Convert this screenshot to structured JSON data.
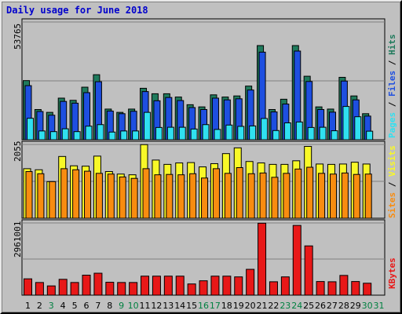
{
  "chart_data": {
    "type": "bar",
    "title": "Daily usage for June 2018",
    "categories": [
      "1",
      "2",
      "3",
      "4",
      "5",
      "6",
      "7",
      "8",
      "9",
      "10",
      "11",
      "12",
      "13",
      "14",
      "15",
      "16",
      "17",
      "18",
      "19",
      "20",
      "21",
      "22",
      "23",
      "24",
      "25",
      "26",
      "27",
      "28",
      "29",
      "30",
      "31"
    ],
    "weekend_days": [
      "3",
      "9",
      "10",
      "16",
      "17",
      "23",
      "24",
      "30",
      "31"
    ],
    "colors": {
      "hits": "#1f7a5c",
      "files": "#1e4fe0",
      "pages": "#30e0f0",
      "visits": "#f8f828",
      "sites": "#f88c10",
      "kbytes": "#e81818",
      "weekday_label": "#000000",
      "weekend_label": "#008040"
    },
    "panels": [
      {
        "name": "hits-files-pages",
        "max_label": "53765",
        "ylim": [
          0,
          53765
        ],
        "series": [
          {
            "name": "Hits",
            "color": "#1f7a5c",
            "values": [
              27000,
              13800,
              12500,
              19000,
              18000,
              24000,
              29700,
              14000,
              12500,
              14000,
              23500,
              21000,
              21000,
              19500,
              16000,
              15000,
              20500,
              19500,
              20000,
              24500,
              43000,
              13800,
              18500,
              43000,
              29000,
              15000,
              14000,
              28500,
              20000,
              11900,
              0
            ]
          },
          {
            "name": "Files",
            "color": "#1e4fe0",
            "values": [
              24700,
              12900,
              11200,
              17500,
              16700,
              21500,
              26500,
              13100,
              11900,
              13000,
              22000,
              17800,
              19300,
              17900,
              14700,
              13800,
              19000,
              18200,
              18700,
              22700,
              40000,
              12700,
              16300,
              40500,
              26600,
              13800,
              12600,
              26800,
              18200,
              10800,
              0
            ]
          },
          {
            "name": "Pages",
            "color": "#30e0f0",
            "values": [
              9800,
              4000,
              3700,
              5000,
              3700,
              6200,
              6900,
              3500,
              4000,
              4000,
              12500,
              5600,
              5700,
              5700,
              4900,
              6900,
              4700,
              6700,
              6100,
              6300,
              9700,
              4200,
              7700,
              8100,
              5600,
              5700,
              4100,
              15200,
              10500,
              3900,
              0
            ]
          }
        ]
      },
      {
        "name": "visits-sites",
        "max_label": "2055",
        "ylim": [
          0,
          2055
        ],
        "series": [
          {
            "name": "Visits",
            "color": "#f8f828",
            "values": [
              1380,
              1350,
              1020,
              1720,
              1460,
              1450,
              1730,
              1300,
              1230,
              1210,
              2050,
              1620,
              1500,
              1540,
              1550,
              1430,
              1520,
              1800,
              1960,
              1580,
              1540,
              1500,
              1500,
              1600,
              2000,
              1510,
              1500,
              1510,
              1560,
              1510,
              0
            ]
          },
          {
            "name": "Sites",
            "color": "#f88c10",
            "values": [
              1300,
              1240,
              1020,
              1380,
              1350,
              1310,
              1250,
              1230,
              1150,
              1110,
              1380,
              1210,
              1220,
              1210,
              1240,
              1120,
              1380,
              1250,
              1410,
              1240,
              1260,
              1140,
              1250,
              1370,
              1420,
              1250,
              1230,
              1260,
              1220,
              1230,
              0
            ]
          }
        ]
      },
      {
        "name": "kbytes",
        "max_label": "2961001",
        "ylim": [
          0,
          2961001
        ],
        "series": [
          {
            "name": "KBytes",
            "color": "#e81818",
            "values": [
              670000,
              520000,
              380000,
              650000,
              520000,
              820000,
              900000,
              530000,
              520000,
              520000,
              780000,
              780000,
              780000,
              780000,
              460000,
              590000,
              780000,
              780000,
              750000,
              1060000,
              2950000,
              550000,
              750000,
              2860000,
              2020000,
              560000,
              550000,
              810000,
              560000,
              490000,
              0
            ]
          }
        ]
      }
    ],
    "right_labels": {
      "panel1": [
        {
          "text": "Pages",
          "color": "#30e0f0"
        },
        {
          "text": " / ",
          "color": "#000000"
        },
        {
          "text": "Files",
          "color": "#1e4fe0"
        },
        {
          "text": " / ",
          "color": "#000000"
        },
        {
          "text": "Hits",
          "color": "#1f7a5c"
        }
      ],
      "panel2": [
        {
          "text": "Sites",
          "color": "#f88c10"
        },
        {
          "text": " / ",
          "color": "#000000"
        },
        {
          "text": "Visits",
          "color": "#f8f828"
        }
      ],
      "panel3": [
        {
          "text": "KBytes",
          "color": "#e81818"
        }
      ]
    }
  }
}
